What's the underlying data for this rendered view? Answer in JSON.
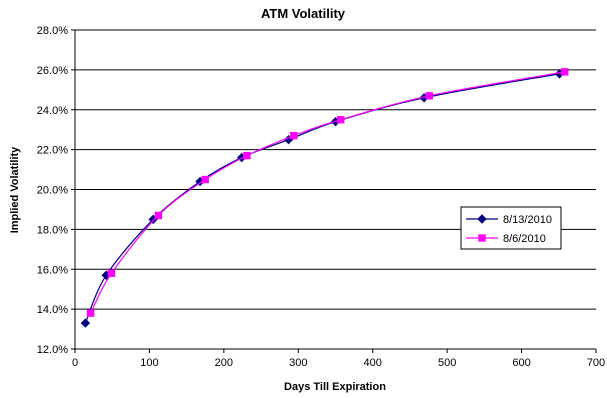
{
  "chart_data": {
    "type": "line",
    "title": "ATM Volatility",
    "xlabel": "Days Till Expiration",
    "ylabel": "Implied Volatility",
    "xlim": [
      0,
      700
    ],
    "ylim": [
      12.0,
      28.0
    ],
    "x_ticks": [
      "0",
      "100",
      "200",
      "300",
      "400",
      "500",
      "600",
      "700"
    ],
    "y_ticks": [
      "12.0%",
      "14.0%",
      "16.0%",
      "18.0%",
      "20.0%",
      "22.0%",
      "24.0%",
      "26.0%",
      "28.0%"
    ],
    "grid": "horizontal",
    "legend_position": "right",
    "series": [
      {
        "name": "8/13/2010",
        "color": "#000080",
        "marker": "diamond",
        "x": [
          14,
          42,
          105,
          168,
          224,
          287,
          350,
          469,
          651
        ],
        "y": [
          13.3,
          15.7,
          18.5,
          20.4,
          21.6,
          22.5,
          23.4,
          24.6,
          25.8
        ]
      },
      {
        "name": "8/6/2010",
        "color": "#ff00ff",
        "marker": "square",
        "x": [
          21,
          49,
          112,
          175,
          231,
          294,
          357,
          476,
          658
        ],
        "y": [
          13.8,
          15.8,
          18.7,
          20.5,
          21.7,
          22.7,
          23.5,
          24.7,
          25.9
        ]
      }
    ]
  }
}
